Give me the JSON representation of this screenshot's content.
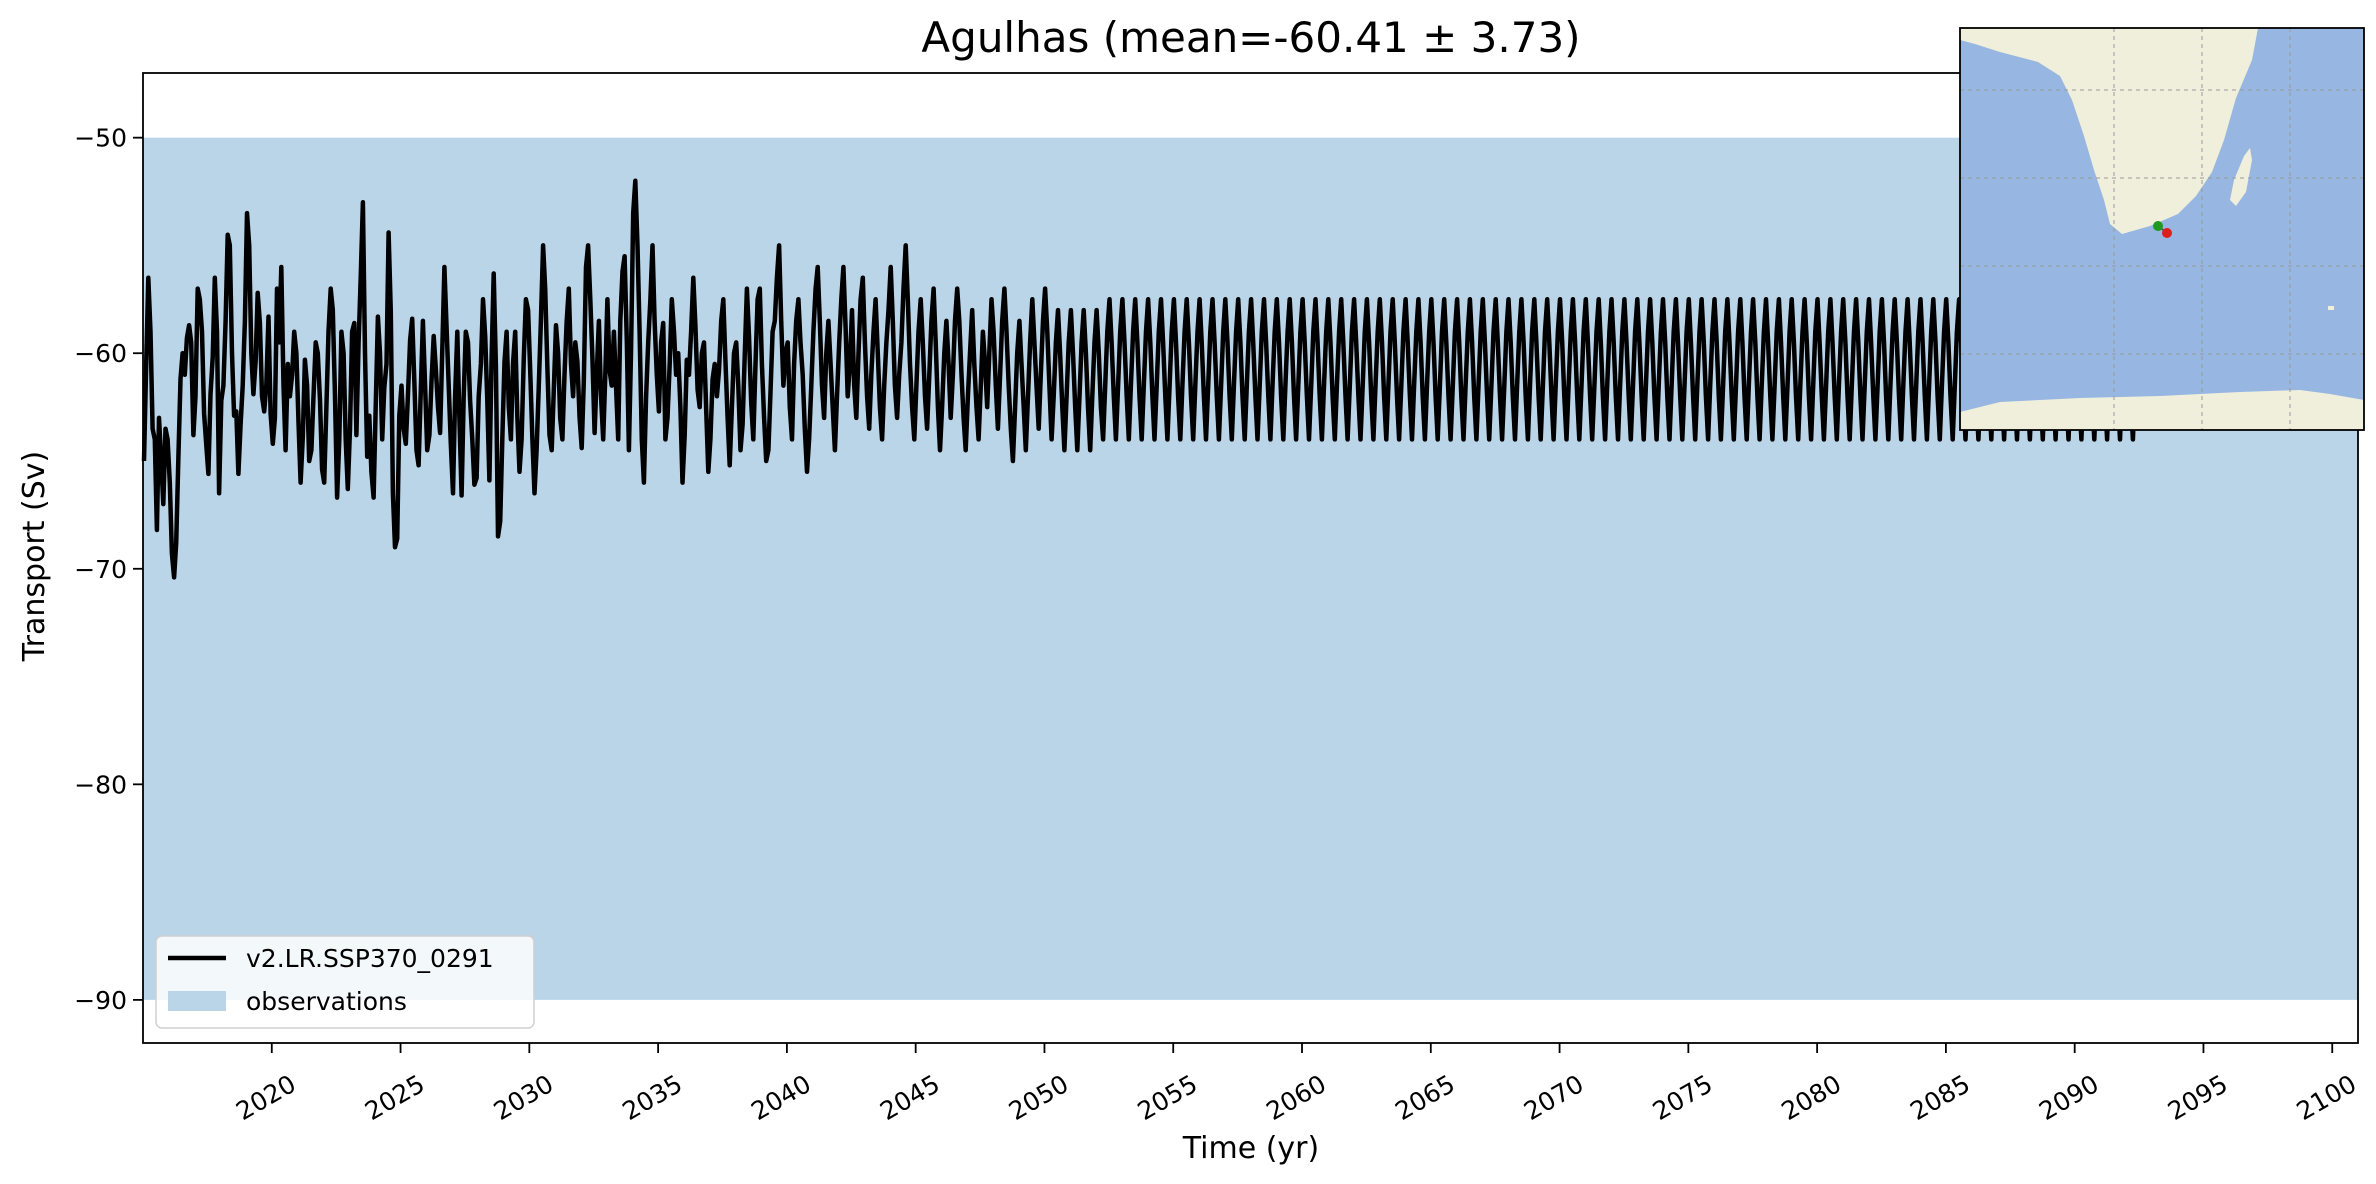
{
  "chart_data": {
    "type": "line",
    "title": "Agulhas (mean=-60.41 ± 3.73)",
    "xlabel": "Time (yr)",
    "ylabel": "Transport (Sv)",
    "xlim": [
      2015,
      2101
    ],
    "ylim": [
      -92,
      -47
    ],
    "xticks": [
      2020,
      2025,
      2030,
      2035,
      2040,
      2045,
      2050,
      2055,
      2060,
      2065,
      2070,
      2075,
      2080,
      2085,
      2090,
      2095,
      2100
    ],
    "yticks": [
      -50,
      -60,
      -70,
      -80,
      -90
    ],
    "ytick_labels": [
      "−50",
      "−60",
      "−70",
      "−80",
      "−90"
    ],
    "grid": false,
    "legend_position": "lower-left",
    "observations_band": {
      "label": "observations",
      "low": -90,
      "high": -50,
      "color": "#bad5e8"
    },
    "series": [
      {
        "name": "v2.LR.SSP370_0291",
        "color": "#000000",
        "x_start": 2015.04,
        "x_step": 0.0833,
        "values": [
          -65.0,
          -60.5,
          -56.5,
          -59.0,
          -63.5,
          -64.0,
          -68.2,
          -63.0,
          -65.0,
          -67.0,
          -63.5,
          -64.0,
          -66.0,
          -69.3,
          -70.4,
          -68.8,
          -64.8,
          -61.2,
          -60.0,
          -61.0,
          -59.3,
          -58.7,
          -59.5,
          -63.8,
          -62.0,
          -57.0,
          -57.5,
          -59.0,
          -62.8,
          -64.2,
          -65.6,
          -61.9,
          -60.2,
          -56.5,
          -59.0,
          -66.5,
          -62.2,
          -61.5,
          -58.5,
          -54.5,
          -55.0,
          -60.0,
          -62.9,
          -62.7,
          -65.6,
          -63.3,
          -61.5,
          -58.5,
          -53.5,
          -55.0,
          -60.0,
          -61.9,
          -60.4,
          -57.2,
          -58.6,
          -62.0,
          -62.7,
          -61.5,
          -58.3,
          -62.8,
          -64.2,
          -63.0,
          -57.0,
          -59.5,
          -56.0,
          -61.5,
          -64.5,
          -60.5,
          -62.0,
          -61.0,
          -59.0,
          -60.0,
          -63.2,
          -66.0,
          -63.9,
          -60.3,
          -61.5,
          -65.0,
          -64.5,
          -62.0,
          -59.5,
          -60.0,
          -62.2,
          -65.4,
          -66.0,
          -62.5,
          -59.0,
          -57.0,
          -58.0,
          -62.0,
          -66.7,
          -64.0,
          -59.0,
          -60.0,
          -64.0,
          -66.3,
          -63.5,
          -59.0,
          -58.6,
          -63.8,
          -59.5,
          -56.5,
          -53.0,
          -60.0,
          -64.8,
          -62.9,
          -65.5,
          -66.7,
          -62.5,
          -58.3,
          -60.0,
          -64.0,
          -61.6,
          -60.5,
          -54.4,
          -58.1,
          -66.5,
          -69.0,
          -68.6,
          -62.9,
          -61.5,
          -63.5,
          -64.2,
          -62.0,
          -59.4,
          -58.4,
          -61.4,
          -64.5,
          -65.2,
          -61.7,
          -58.5,
          -61.5,
          -64.5,
          -63.8,
          -61.3,
          -59.2,
          -60.7,
          -62.5,
          -63.7,
          -60.0,
          -56.0,
          -58.7,
          -61.5,
          -64.2,
          -66.5,
          -62.0,
          -59.0,
          -63.0,
          -66.6,
          -62.0,
          -59.0,
          -59.5,
          -62.2,
          -64.0,
          -66.1,
          -65.8,
          -62.0,
          -60.5,
          -57.5,
          -59.2,
          -62.2,
          -65.9,
          -60.2,
          -56.3,
          -60.6,
          -68.5,
          -67.8,
          -64.0,
          -60.4,
          -59.0,
          -62.5,
          -64.0,
          -60.5,
          -59.0,
          -62.9,
          -65.5,
          -64.0,
          -60.2,
          -57.5,
          -58.0,
          -60.8,
          -64.0,
          -66.5,
          -64.5,
          -61.5,
          -58.5,
          -55.0,
          -57.0,
          -60.7,
          -63.8,
          -64.5,
          -61.7,
          -58.7,
          -60.0,
          -63.0,
          -64.0,
          -61.0,
          -58.5,
          -57.0,
          -60.5,
          -62.0,
          -59.5,
          -60.4,
          -63.0,
          -64.4,
          -61.3,
          -56.0,
          -55.0,
          -57.5,
          -60.2,
          -63.7,
          -61.0,
          -58.5,
          -62.0,
          -64.0,
          -61.0,
          -57.5,
          -60.8,
          -61.5,
          -59.0,
          -61.5,
          -64.0,
          -58.5,
          -56.2,
          -55.5,
          -59.4,
          -64.5,
          -60.0,
          -53.5,
          -52.0,
          -55.0,
          -59.0,
          -64.0,
          -66.0,
          -62.0,
          -59.5,
          -57.5,
          -55.0,
          -58.5,
          -61.0,
          -62.7,
          -59.5,
          -58.6,
          -64.0,
          -63.0,
          -60.5,
          -57.5,
          -59.0,
          -61.0,
          -60.0,
          -62.5,
          -66.0,
          -63.8,
          -60.3,
          -61.0,
          -59.0,
          -56.5,
          -58.7,
          -61.7,
          -62.5,
          -60.0,
          -59.5,
          -62.5,
          -65.5,
          -64.0,
          -61.2,
          -60.5,
          -62.0,
          -60.8,
          -58.5,
          -57.5,
          -60.3,
          -63.0,
          -65.2,
          -62.5,
          -60.0,
          -59.5,
          -61.5,
          -64.5,
          -63.3,
          -60.0,
          -57.0,
          -59.2,
          -62.3,
          -64.0,
          -60.5,
          -57.5,
          -57.0,
          -60.5,
          -63.0,
          -65.0,
          -64.5,
          -61.8,
          -59.0,
          -58.5,
          -56.5,
          -55.0,
          -58.5,
          -61.5,
          -60.0,
          -59.5,
          -62.5,
          -64.0,
          -60.5,
          -58.5,
          -57.5,
          -59.5,
          -61.0,
          -63.5,
          -65.5,
          -64.0,
          -61.5,
          -59.0,
          -57.0,
          -56.0,
          -58.5,
          -61.5,
          -63.0,
          -60.0,
          -58.5,
          -60.5,
          -62.5,
          -64.5,
          -62.0,
          -59.5,
          -57.5,
          -56.0,
          -58.8,
          -62.0,
          -60.5,
          -58.0,
          -61.5,
          -63.0,
          -60.0,
          -57.5,
          -56.5,
          -59.5,
          -62.0,
          -63.5,
          -61.0,
          -59.0,
          -57.5,
          -60.0,
          -62.5,
          -64.0,
          -61.5,
          -59.5,
          -58.0,
          -56.0,
          -58.5,
          -61.5,
          -63.0,
          -61.0,
          -59.5,
          -57.0,
          -55.0,
          -57.5,
          -60.5,
          -62.5,
          -64.0,
          -61.5,
          -59.0,
          -57.5,
          -59.5,
          -62.0,
          -63.5,
          -61.0,
          -58.5,
          -57.0,
          -59.5,
          -62.5,
          -64.5,
          -62.5,
          -60.0,
          -58.5,
          -60.5,
          -63.0,
          -61.0,
          -58.5,
          -57.0,
          -58.5,
          -61.0,
          -63.0,
          -64.5,
          -62.0,
          -60.0,
          -58.0,
          -60.5,
          -62.5,
          -64.0,
          -61.5,
          -59.0,
          -60.5,
          -62.5,
          -60.0,
          -57.5,
          -59.0,
          -61.5,
          -63.5,
          -61.0,
          -58.5,
          -57.0,
          -59.0,
          -61.5,
          -63.5,
          -65.0,
          -62.5,
          -60.0,
          -58.5,
          -60.5,
          -62.5,
          -64.5,
          -62.0,
          -59.5,
          -57.5,
          -59.5,
          -61.5,
          -63.5,
          -61.0,
          -58.5,
          -57.0,
          -59.0,
          -61.5,
          -64.0,
          -62.0,
          -59.5,
          -58.0,
          -60.0,
          -62.5,
          -64.5,
          -62.0,
          -59.5,
          -58.0,
          -60.0,
          -62.5,
          -64.5,
          -62.0,
          -59.5,
          -58.0,
          -60.0,
          -62.5,
          -64.5,
          -62.0,
          -59.5,
          -58.0,
          -60.0,
          -62.5,
          -64.0,
          -61.5,
          -59.0,
          -57.5,
          -59.5,
          -62.0,
          -64.0,
          -61.5,
          -59.0,
          -57.5,
          -59.5,
          -62.0,
          -64.0,
          -61.5,
          -59.0,
          -57.5,
          -59.5,
          -62.0,
          -64.0,
          -61.5,
          -59.0,
          -57.5,
          -59.5,
          -62.0,
          -64.0,
          -61.5,
          -59.0,
          -57.5,
          -59.5,
          -62.0,
          -64.0,
          -61.5,
          -59.0,
          -57.5,
          -59.5,
          -62.0,
          -64.0,
          -61.5,
          -59.0,
          -57.5,
          -59.5,
          -62.0,
          -64.0,
          -61.5,
          -59.0,
          -57.5,
          -59.5,
          -62.0,
          -64.0,
          -61.5,
          -59.0,
          -57.5,
          -59.5,
          -62.0,
          -64.0,
          -61.5,
          -59.0,
          -57.5,
          -59.5,
          -62.0,
          -64.0,
          -61.5,
          -59.0,
          -57.5,
          -59.5,
          -62.0,
          -64.0,
          -61.5,
          -59.0,
          -57.5,
          -59.5,
          -62.0,
          -64.0,
          -61.5,
          -59.0,
          -57.5,
          -59.5,
          -62.0,
          -64.0,
          -61.5,
          -59.0,
          -57.5,
          -59.5,
          -62.0,
          -64.0,
          -61.5,
          -59.0,
          -57.5,
          -59.5,
          -62.0,
          -64.0,
          -61.5,
          -59.0,
          -57.5,
          -59.5,
          -62.0,
          -64.0,
          -61.5,
          -59.0,
          -57.5,
          -59.5,
          -62.0,
          -64.0,
          -61.5,
          -59.0,
          -57.5,
          -59.5,
          -62.0,
          -64.0,
          -61.5,
          -59.0,
          -57.5,
          -59.5,
          -62.0,
          -64.0,
          -61.5,
          -59.0,
          -57.5,
          -59.5,
          -62.0,
          -64.0,
          -61.5,
          -59.0,
          -57.5,
          -59.5,
          -62.0,
          -64.0,
          -61.5,
          -59.0,
          -57.5,
          -59.5,
          -62.0,
          -64.0,
          -61.5,
          -59.0,
          -57.5,
          -59.5,
          -62.0,
          -64.0,
          -61.5,
          -59.0,
          -57.5,
          -59.5,
          -62.0,
          -64.0,
          -61.5,
          -59.0,
          -57.5,
          -59.5,
          -62.0,
          -64.0,
          -61.5,
          -59.0,
          -57.5,
          -59.5,
          -62.0,
          -64.0,
          -61.5,
          -59.0,
          -57.5,
          -59.5,
          -62.0,
          -64.0,
          -61.5,
          -59.0,
          -57.5,
          -59.5,
          -62.0,
          -64.0,
          -61.5,
          -59.0,
          -57.5,
          -59.5,
          -62.0,
          -64.0,
          -61.5,
          -59.0,
          -57.5,
          -59.5,
          -62.0,
          -64.0,
          -61.5,
          -59.0,
          -57.5,
          -59.5,
          -62.0,
          -64.0,
          -61.5,
          -59.0,
          -57.5,
          -59.5,
          -62.0,
          -64.0,
          -61.5,
          -59.0,
          -57.5,
          -59.5,
          -62.0,
          -64.0,
          -61.5,
          -59.0,
          -57.5,
          -59.5,
          -62.0,
          -64.0,
          -61.5,
          -59.0,
          -57.5,
          -59.5,
          -62.0,
          -64.0,
          -61.5,
          -59.0,
          -57.5,
          -59.5,
          -62.0,
          -64.0,
          -61.5,
          -59.0,
          -57.5,
          -59.5,
          -62.0,
          -64.0,
          -61.5,
          -59.0,
          -57.5,
          -59.5,
          -62.0,
          -64.0,
          -61.5,
          -59.0,
          -57.5,
          -59.5,
          -62.0,
          -64.0,
          -61.5,
          -59.0,
          -57.5,
          -59.5,
          -62.0,
          -64.0,
          -61.5,
          -59.0,
          -57.5,
          -59.5,
          -62.0,
          -64.0,
          -61.5,
          -59.0,
          -57.5,
          -59.5,
          -62.0,
          -64.0,
          -61.5,
          -59.0,
          -57.5,
          -59.5,
          -62.0,
          -64.0,
          -61.5,
          -59.0,
          -57.5,
          -59.5,
          -62.0,
          -64.0,
          -61.5,
          -59.0,
          -57.5,
          -59.5,
          -62.0,
          -64.0,
          -61.5,
          -59.0,
          -57.5,
          -59.5,
          -62.0,
          -64.0,
          -61.5,
          -59.0,
          -57.5,
          -59.5,
          -62.0,
          -64.0,
          -61.5,
          -59.0,
          -57.5,
          -59.5,
          -62.0,
          -64.0,
          -61.5,
          -59.0,
          -57.5,
          -59.5,
          -62.0,
          -64.0,
          -61.5,
          -59.0,
          -57.5,
          -59.5,
          -62.0,
          -64.0,
          -61.5,
          -59.0,
          -57.5,
          -59.5,
          -62.0,
          -64.0,
          -61.5,
          -59.0,
          -57.5,
          -59.5,
          -62.0,
          -64.0,
          -61.5,
          -59.0,
          -57.5,
          -59.5,
          -62.0,
          -64.0,
          -61.5,
          -59.0,
          -57.5,
          -59.5,
          -62.0,
          -64.0,
          -61.5,
          -59.0,
          -57.5,
          -59.5,
          -62.0,
          -64.0,
          -61.5,
          -59.0,
          -57.5,
          -59.5,
          -62.0,
          -64.0,
          -61.5,
          -59.0,
          -57.5,
          -59.5,
          -62.0,
          -64.0,
          -61.5,
          -59.0,
          -57.5,
          -59.5,
          -62.0,
          -64.0,
          -61.5,
          -59.0,
          -57.5,
          -59.5,
          -62.0,
          -64.0,
          -61.5,
          -59.0,
          -57.5,
          -59.5,
          -62.0,
          -64.0,
          -61.5,
          -59.0,
          -57.5,
          -59.5,
          -62.0,
          -64.0,
          -61.5,
          -59.0,
          -57.5,
          -59.5,
          -62.0,
          -64.0,
          -61.5,
          -59.0,
          -57.5,
          -59.5,
          -62.0,
          -64.0,
          -61.5,
          -59.0,
          -57.5,
          -59.5,
          -62.0,
          -64.0,
          -61.5,
          -59.0,
          -57.5,
          -59.5,
          -62.0,
          -64.0,
          -61.5,
          -59.0,
          -57.5,
          -59.5,
          -62.0,
          -64.0,
          -61.5,
          -59.0,
          -57.5,
          -59.5,
          -62.0,
          -64.0,
          -61.5,
          -59.0,
          -57.5,
          -59.5,
          -62.0,
          -64.0,
          -61.5,
          -59.0,
          -57.5,
          -59.5,
          -62.0,
          -64.0,
          -61.5,
          -59.0,
          -57.5,
          -59.5,
          -62.0,
          -64.0,
          -61.5,
          -59.0,
          -57.5,
          -59.5,
          -62.0,
          -64.0,
          -61.5,
          -59.0,
          -57.5,
          -59.5,
          -62.0,
          -64.0,
          -61.5,
          -59.0,
          -57.5,
          -59.5,
          -62.0,
          -64.0,
          -61.5,
          -59.0,
          -57.5,
          -59.5,
          -62.0,
          -64.0,
          -61.5,
          -59.0,
          -57.5,
          -59.5,
          -62.0,
          -64.0,
          -61.5,
          -59.0,
          -57.5,
          -59.5,
          -62.0,
          -64.0,
          -61.5,
          -59.0,
          -57.5,
          -59.5,
          -62.0,
          -64.0,
          -61.5,
          -59.0,
          -57.5,
          -59.5,
          -62.0,
          -64.0,
          -61.5,
          -59.0,
          -57.5,
          -59.5,
          -62.0,
          -64.0,
          -61.5,
          -59.0,
          -57.5,
          -59.5,
          -62.0,
          -64.0,
          -61.5,
          -59.0
        ]
      }
    ]
  },
  "inset_map": {
    "land_color": "#efefdc",
    "ocean_color": "#97b6e1",
    "marker_start_color": "#1f9a1f",
    "marker_end_color": "#e01c1c"
  }
}
